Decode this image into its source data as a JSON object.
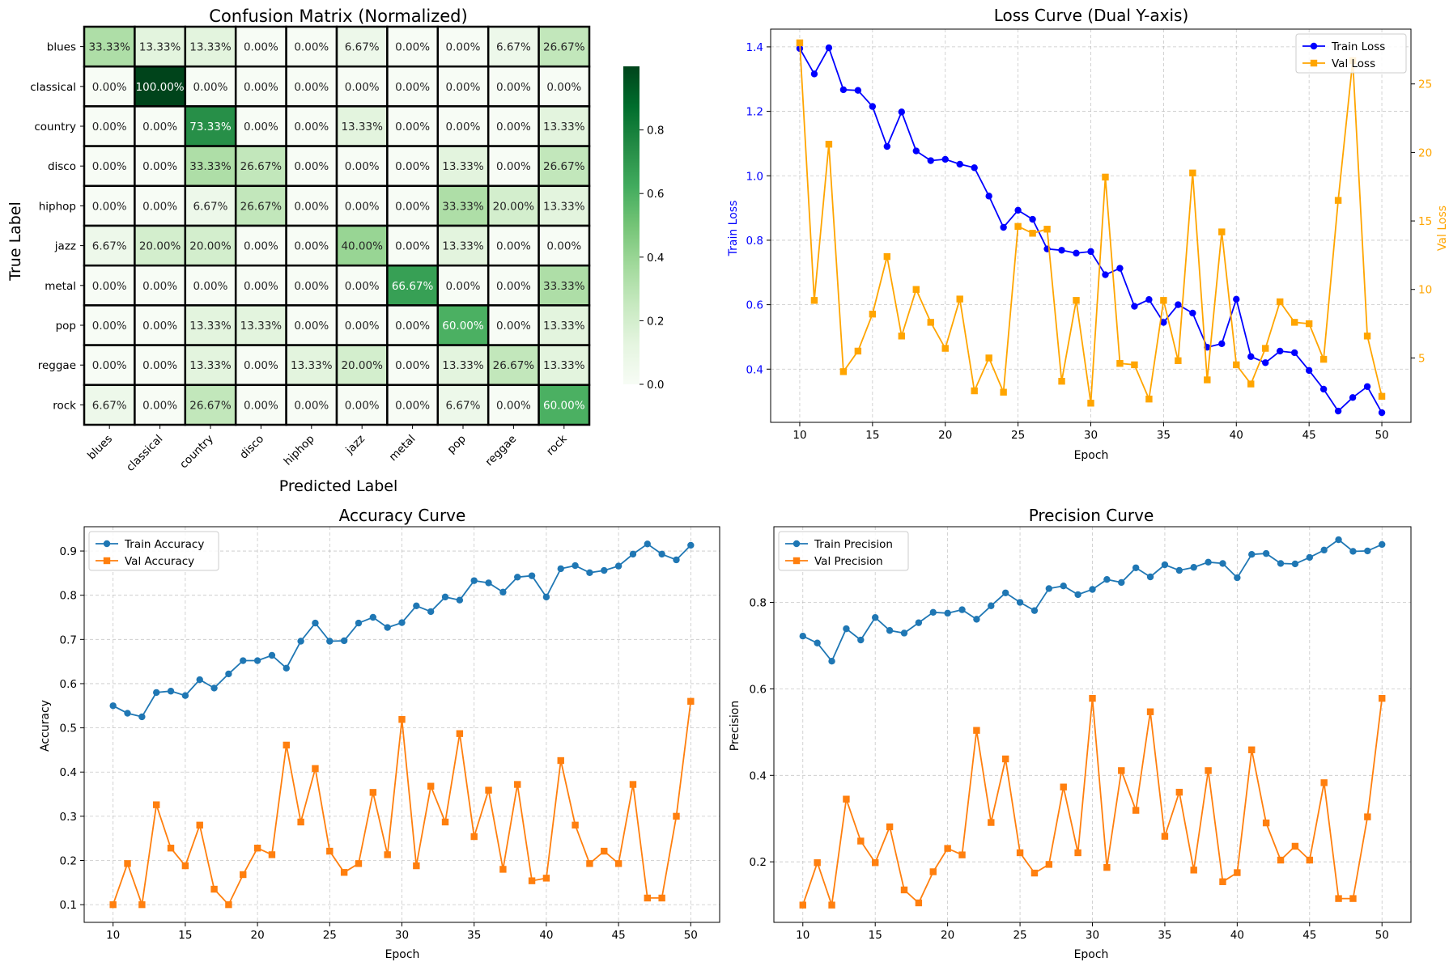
{
  "chart_data": [
    {
      "type": "heatmap",
      "title": "Confusion Matrix (Normalized)",
      "xlabel": "Predicted Label",
      "ylabel": "True Label",
      "labels": [
        "blues",
        "classical",
        "country",
        "disco",
        "hiphop",
        "jazz",
        "metal",
        "pop",
        "reggae",
        "rock"
      ],
      "matrix": [
        [
          33.33,
          13.33,
          13.33,
          0.0,
          0.0,
          6.67,
          0.0,
          0.0,
          6.67,
          26.67
        ],
        [
          0.0,
          100.0,
          0.0,
          0.0,
          0.0,
          0.0,
          0.0,
          0.0,
          0.0,
          0.0
        ],
        [
          0.0,
          0.0,
          73.33,
          0.0,
          0.0,
          13.33,
          0.0,
          0.0,
          0.0,
          13.33
        ],
        [
          0.0,
          0.0,
          33.33,
          26.67,
          0.0,
          0.0,
          0.0,
          13.33,
          0.0,
          26.67
        ],
        [
          0.0,
          0.0,
          6.67,
          26.67,
          0.0,
          0.0,
          0.0,
          33.33,
          20.0,
          13.33
        ],
        [
          6.67,
          20.0,
          20.0,
          0.0,
          0.0,
          40.0,
          0.0,
          13.33,
          0.0,
          0.0
        ],
        [
          0.0,
          0.0,
          0.0,
          0.0,
          0.0,
          0.0,
          66.67,
          0.0,
          0.0,
          33.33
        ],
        [
          0.0,
          0.0,
          13.33,
          13.33,
          0.0,
          0.0,
          0.0,
          60.0,
          0.0,
          13.33
        ],
        [
          0.0,
          0.0,
          13.33,
          0.0,
          13.33,
          20.0,
          0.0,
          13.33,
          26.67,
          13.33
        ],
        [
          6.67,
          0.0,
          26.67,
          0.0,
          0.0,
          0.0,
          0.0,
          6.67,
          0.0,
          60.0
        ]
      ],
      "colorbar": {
        "min": 0,
        "max": 1,
        "ticks": [
          "0.0",
          "0.2",
          "0.4",
          "0.6",
          "0.8"
        ]
      },
      "colormap": "Greens"
    },
    {
      "type": "line",
      "title": "Loss Curve (Dual Y-axis)",
      "xlabel": "Epoch",
      "ylabel": "Train Loss",
      "ylabel_right": "Val Loss",
      "xlim": [
        8.0,
        52.0
      ],
      "ylim": [
        0.235,
        1.455
      ],
      "ylim_right": [
        0.3,
        29.0
      ],
      "xticks": [
        10,
        15,
        20,
        25,
        30,
        35,
        40,
        45,
        50
      ],
      "yticks": [
        "0.4",
        "0.6",
        "0.8",
        "1.0",
        "1.2",
        "1.4"
      ],
      "yticks_right": [
        "5",
        "10",
        "15",
        "20",
        "25"
      ],
      "grid": true,
      "legend": "upper right",
      "x": [
        10,
        11,
        12,
        13,
        14,
        15,
        16,
        17,
        18,
        19,
        20,
        21,
        22,
        23,
        24,
        25,
        26,
        27,
        28,
        29,
        30,
        31,
        32,
        33,
        34,
        35,
        36,
        37,
        38,
        39,
        40,
        41,
        42,
        43,
        44,
        45,
        46,
        47,
        48,
        49,
        50
      ],
      "series": [
        {
          "name": "Train Loss",
          "axis": "left",
          "color": "#0000ff",
          "marker": "circle",
          "values": [
            1.395,
            1.316,
            1.397,
            1.267,
            1.265,
            1.215,
            1.091,
            1.198,
            1.077,
            1.047,
            1.051,
            1.036,
            1.025,
            0.937,
            0.84,
            0.893,
            0.865,
            0.773,
            0.769,
            0.76,
            0.765,
            0.693,
            0.713,
            0.595,
            0.616,
            0.545,
            0.6,
            0.574,
            0.468,
            0.479,
            0.617,
            0.439,
            0.42,
            0.456,
            0.451,
            0.396,
            0.338,
            0.27,
            0.312,
            0.346,
            0.265
          ]
        },
        {
          "name": "Val Loss",
          "axis": "right",
          "color": "#ffa500",
          "marker": "square",
          "values": [
            28.0,
            9.2,
            20.6,
            4.0,
            5.5,
            8.2,
            12.4,
            6.6,
            10.0,
            7.6,
            5.7,
            9.3,
            2.6,
            5.0,
            2.5,
            14.6,
            14.1,
            14.4,
            3.3,
            9.2,
            1.7,
            18.2,
            4.6,
            4.5,
            2.0,
            9.2,
            4.8,
            18.5,
            3.4,
            14.2,
            4.5,
            3.1,
            5.7,
            9.1,
            7.6,
            7.5,
            4.9,
            16.5,
            26.7,
            6.6,
            2.2
          ]
        }
      ]
    },
    {
      "type": "line",
      "title": "Accuracy Curve",
      "xlabel": "Epoch",
      "ylabel": "Accuracy",
      "xlim": [
        8.0,
        52.0
      ],
      "ylim": [
        0.06,
        0.955
      ],
      "xticks": [
        10,
        15,
        20,
        25,
        30,
        35,
        40,
        45,
        50
      ],
      "yticks": [
        "0.1",
        "0.2",
        "0.3",
        "0.4",
        "0.5",
        "0.6",
        "0.7",
        "0.8",
        "0.9"
      ],
      "grid": true,
      "legend": "upper left",
      "x": [
        10,
        11,
        12,
        13,
        14,
        15,
        16,
        17,
        18,
        19,
        20,
        21,
        22,
        23,
        24,
        25,
        26,
        27,
        28,
        29,
        30,
        31,
        32,
        33,
        34,
        35,
        36,
        37,
        38,
        39,
        40,
        41,
        42,
        43,
        44,
        45,
        46,
        47,
        48,
        49,
        50
      ],
      "series": [
        {
          "name": "Train Accuracy",
          "color": "#1f77b4",
          "marker": "circle",
          "values": [
            0.55,
            0.533,
            0.525,
            0.58,
            0.583,
            0.573,
            0.609,
            0.59,
            0.622,
            0.652,
            0.652,
            0.664,
            0.635,
            0.696,
            0.737,
            0.696,
            0.697,
            0.737,
            0.75,
            0.727,
            0.738,
            0.776,
            0.763,
            0.796,
            0.789,
            0.833,
            0.828,
            0.807,
            0.841,
            0.844,
            0.796,
            0.86,
            0.867,
            0.851,
            0.856,
            0.866,
            0.893,
            0.916,
            0.893,
            0.88,
            0.913
          ]
        },
        {
          "name": "Val Accuracy",
          "color": "#ff7f0e",
          "marker": "square",
          "values": [
            0.1,
            0.193,
            0.1,
            0.326,
            0.228,
            0.188,
            0.28,
            0.135,
            0.1,
            0.168,
            0.228,
            0.213,
            0.461,
            0.287,
            0.408,
            0.221,
            0.173,
            0.193,
            0.354,
            0.213,
            0.519,
            0.188,
            0.368,
            0.287,
            0.487,
            0.254,
            0.359,
            0.18,
            0.372,
            0.154,
            0.16,
            0.426,
            0.28,
            0.193,
            0.221,
            0.193,
            0.372,
            0.115,
            0.115,
            0.3,
            0.56
          ]
        }
      ]
    },
    {
      "type": "line",
      "title": "Precision Curve",
      "xlabel": "Epoch",
      "ylabel": "Precision",
      "xlim": [
        8.0,
        52.0
      ],
      "ylim": [
        0.06,
        0.975
      ],
      "xticks": [
        10,
        15,
        20,
        25,
        30,
        35,
        40,
        45,
        50
      ],
      "yticks": [
        "0.2",
        "0.4",
        "0.6",
        "0.8"
      ],
      "grid": true,
      "legend": "upper left",
      "x": [
        10,
        11,
        12,
        13,
        14,
        15,
        16,
        17,
        18,
        19,
        20,
        21,
        22,
        23,
        24,
        25,
        26,
        27,
        28,
        29,
        30,
        31,
        32,
        33,
        34,
        35,
        36,
        37,
        38,
        39,
        40,
        41,
        42,
        43,
        44,
        45,
        46,
        47,
        48,
        49,
        50
      ],
      "series": [
        {
          "name": "Train Precision",
          "color": "#1f77b4",
          "marker": "circle",
          "values": [
            0.722,
            0.706,
            0.664,
            0.739,
            0.713,
            0.765,
            0.735,
            0.729,
            0.753,
            0.777,
            0.775,
            0.783,
            0.761,
            0.792,
            0.822,
            0.8,
            0.781,
            0.832,
            0.838,
            0.818,
            0.83,
            0.853,
            0.846,
            0.88,
            0.859,
            0.887,
            0.874,
            0.881,
            0.893,
            0.89,
            0.857,
            0.911,
            0.913,
            0.89,
            0.889,
            0.904,
            0.921,
            0.945,
            0.918,
            0.919,
            0.934
          ]
        },
        {
          "name": "Val Precision",
          "color": "#ff7f0e",
          "marker": "square",
          "values": [
            0.1,
            0.198,
            0.1,
            0.345,
            0.248,
            0.198,
            0.281,
            0.135,
            0.105,
            0.177,
            0.231,
            0.216,
            0.504,
            0.291,
            0.438,
            0.221,
            0.174,
            0.194,
            0.373,
            0.221,
            0.578,
            0.187,
            0.411,
            0.319,
            0.547,
            0.259,
            0.361,
            0.181,
            0.411,
            0.154,
            0.175,
            0.459,
            0.29,
            0.204,
            0.236,
            0.204,
            0.383,
            0.115,
            0.115,
            0.304,
            0.578
          ]
        }
      ]
    }
  ]
}
